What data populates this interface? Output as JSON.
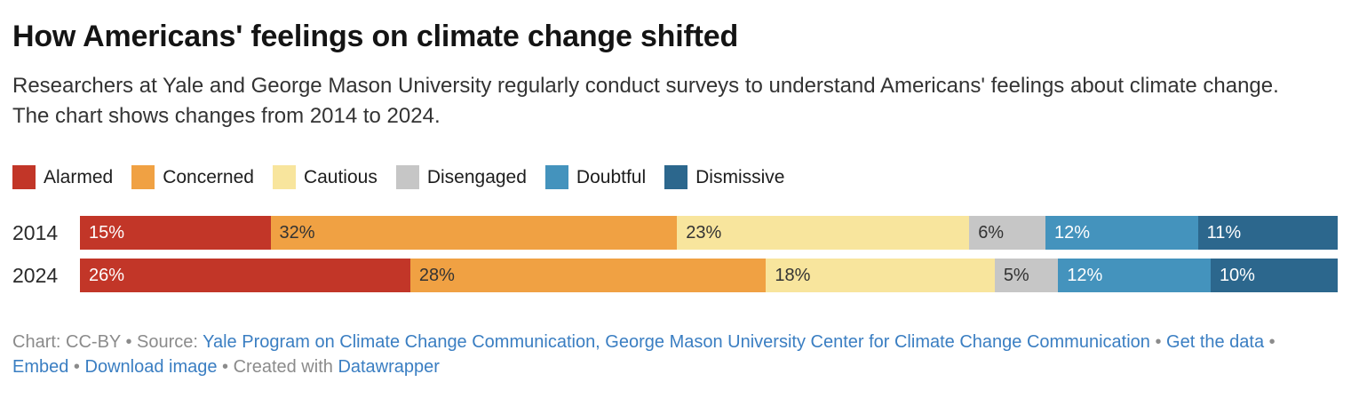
{
  "header": {
    "title": "How Americans' feelings on climate change shifted",
    "description": "Researchers at Yale and George Mason University regularly conduct surveys to understand Americans' feelings about climate change. The chart shows changes from 2014 to 2024."
  },
  "legend": [
    {
      "label": "Alarmed",
      "color": "#c23628",
      "text_color": "#ffffff"
    },
    {
      "label": "Concerned",
      "color": "#f0a143",
      "text_color": "#333333"
    },
    {
      "label": "Cautious",
      "color": "#f8e59d",
      "text_color": "#333333"
    },
    {
      "label": "Disengaged",
      "color": "#c6c6c6",
      "text_color": "#333333"
    },
    {
      "label": "Doubtful",
      "color": "#4493bd",
      "text_color": "#ffffff"
    },
    {
      "label": "Dismissive",
      "color": "#2c678d",
      "text_color": "#ffffff"
    }
  ],
  "chart_data": {
    "type": "bar",
    "variant": "stacked-horizontal-percent",
    "title": "How Americans' feelings on climate change shifted",
    "unit": "%",
    "legend_position": "top",
    "categories": [
      "2014",
      "2024"
    ],
    "segments": [
      "Alarmed",
      "Concerned",
      "Cautious",
      "Disengaged",
      "Doubtful",
      "Dismissive"
    ],
    "series": [
      {
        "name": "Alarmed",
        "values": [
          15,
          26
        ]
      },
      {
        "name": "Concerned",
        "values": [
          32,
          28
        ]
      },
      {
        "name": "Cautious",
        "values": [
          23,
          18
        ]
      },
      {
        "name": "Disengaged",
        "values": [
          6,
          5
        ]
      },
      {
        "name": "Doubtful",
        "values": [
          12,
          12
        ]
      },
      {
        "name": "Dismissive",
        "values": [
          11,
          10
        ]
      }
    ],
    "rows": [
      {
        "label": "2014",
        "values": [
          15,
          32,
          23,
          6,
          12,
          11
        ],
        "labels": [
          "15%",
          "32%",
          "23%",
          "6%",
          "12%",
          "11%"
        ]
      },
      {
        "label": "2024",
        "values": [
          26,
          28,
          18,
          5,
          12,
          10
        ],
        "labels": [
          "26%",
          "28%",
          "18%",
          "5%",
          "12%",
          "10%"
        ]
      }
    ]
  },
  "footer": {
    "parts": [
      {
        "type": "text",
        "text": "Chart: CC-BY • Source: "
      },
      {
        "type": "link",
        "name": "source-link",
        "text": "Yale Program on Climate Change Communication, George Mason University Center for Climate Change Communication"
      },
      {
        "type": "text",
        "text": " • "
      },
      {
        "type": "link",
        "name": "get-the-data-link",
        "text": "Get the data"
      },
      {
        "type": "text",
        "text": " • "
      },
      {
        "type": "link",
        "name": "embed-link",
        "text": "Embed"
      },
      {
        "type": "text",
        "text": "  • "
      },
      {
        "type": "link",
        "name": "download-image-link",
        "text": "Download image"
      },
      {
        "type": "text",
        "text": " • Created with "
      },
      {
        "type": "link",
        "name": "datawrapper-link",
        "text": "Datawrapper"
      }
    ]
  }
}
